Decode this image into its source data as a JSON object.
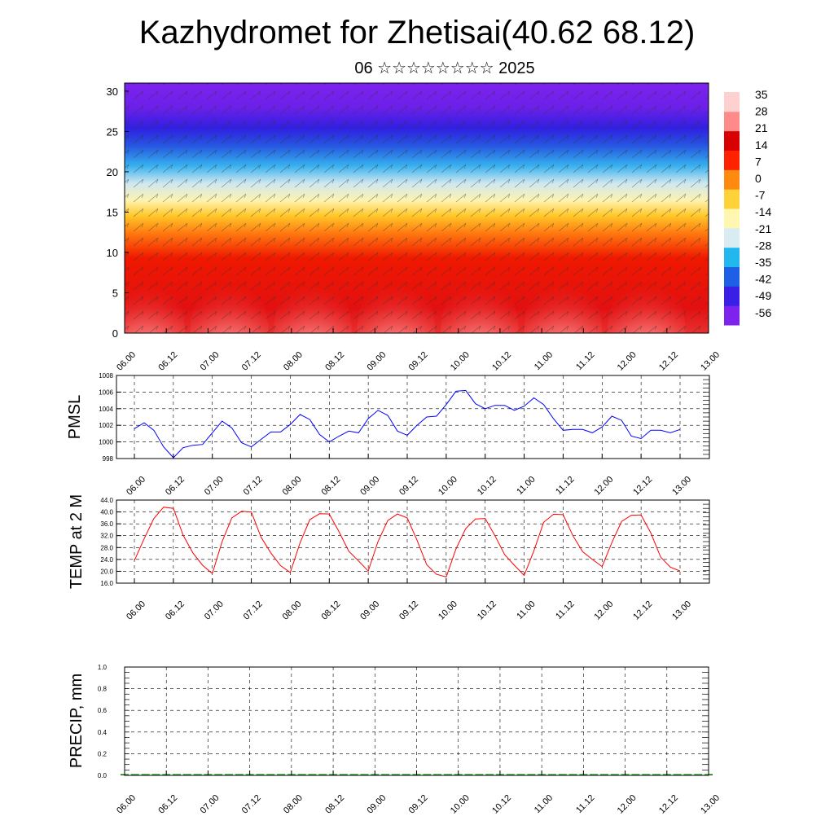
{
  "title": "Kazhydromet for Zhetisai(40.62 68.12)",
  "subtitle": "06 ☆☆☆☆☆☆☆☆ 2025",
  "x_tick_labels": [
    "06.00",
    "06.12",
    "07.00",
    "07.12",
    "08.00",
    "08.12",
    "09.00",
    "09.12",
    "10.00",
    "10.12",
    "11.00",
    "11.12",
    "12.00",
    "12.12",
    "13.00"
  ],
  "colors": {
    "pmsl_line": "#0000ff",
    "temp_line": "#ff0000",
    "precip_baseline": "#006400",
    "colorbar": [
      "#7e22ee",
      "#3a1fe6",
      "#1e5fe6",
      "#22b8ef",
      "#d8ecf2",
      "#fff6b0",
      "#ffd23a",
      "#ff8a10",
      "#ff2200",
      "#d80000",
      "#ff8a8a",
      "#ffd0d0"
    ]
  },
  "chart_data": [
    {
      "type": "heatmap",
      "description_shown": "filled contour of temperature by height with wind barbs",
      "ylim": [
        0,
        30
      ],
      "y_ticks": [
        "0",
        "5",
        "10",
        "15",
        "20",
        "25",
        "30"
      ],
      "colorbar_ticks": [
        "35",
        "28",
        "21",
        "14",
        "7",
        "0",
        "-7",
        "-14",
        "-21",
        "-28",
        "-35",
        "-42",
        "-49",
        "-56"
      ],
      "colorbar_range": [
        -60,
        38
      ]
    },
    {
      "type": "line",
      "ylabel": "PMSL",
      "ylim": [
        998,
        1008
      ],
      "y_ticks": [
        "998",
        "1000",
        "1002",
        "1004",
        "1006",
        "1008"
      ],
      "x_hours": [
        0,
        3,
        6,
        9,
        12,
        15,
        18,
        21,
        24,
        27,
        30,
        33,
        36,
        39,
        42,
        45,
        48,
        51,
        54,
        57,
        60,
        63,
        66,
        69,
        72,
        75,
        78,
        81,
        84,
        87,
        90,
        93,
        96,
        99,
        102,
        105,
        108,
        111,
        114,
        117,
        120,
        123,
        126,
        129,
        132,
        135,
        138,
        141,
        144,
        147,
        150,
        153,
        156,
        159,
        162,
        165,
        168
      ],
      "values": [
        1001.6,
        1002.3,
        1001.4,
        999.4,
        998.1,
        999.3,
        999.6,
        999.7,
        1001.1,
        1002.5,
        1001.7,
        999.9,
        999.4,
        1000.3,
        1001.2,
        1001.2,
        1002.1,
        1003.3,
        1002.7,
        1000.9,
        1000.0,
        1000.7,
        1001.3,
        1001.1,
        1002.8,
        1003.8,
        1003.2,
        1001.3,
        1000.8,
        1002.0,
        1003.0,
        1003.1,
        1004.5,
        1006.1,
        1006.2,
        1004.6,
        1004.0,
        1004.4,
        1004.4,
        1003.8,
        1004.3,
        1005.3,
        1004.5,
        1002.8,
        1001.4,
        1001.5,
        1001.5,
        1001.1,
        1001.8,
        1003.1,
        1002.6,
        1000.7,
        1000.4,
        1001.4,
        1001.4,
        1001.1,
        1001.5
      ]
    },
    {
      "type": "line",
      "ylabel": "TEMP at 2 M",
      "ylim": [
        16,
        44
      ],
      "y_ticks": [
        "16.0",
        "20.0",
        "24.0",
        "28.0",
        "32.0",
        "36.0",
        "40.0",
        "44.0"
      ],
      "x_hours": [
        0,
        3,
        6,
        9,
        12,
        15,
        18,
        21,
        24,
        27,
        30,
        33,
        36,
        39,
        42,
        45,
        48,
        51,
        54,
        57,
        60,
        63,
        66,
        69,
        72,
        75,
        78,
        81,
        84,
        87,
        90,
        93,
        96,
        99,
        102,
        105,
        108,
        111,
        114,
        117,
        120,
        123,
        126,
        129,
        132,
        135,
        138,
        141,
        144,
        147,
        150,
        153,
        156,
        159,
        162,
        165,
        168
      ],
      "values": [
        23.6,
        31.0,
        37.8,
        41.6,
        41.2,
        32.2,
        26.2,
        22.0,
        19.2,
        30.0,
        38.0,
        40.2,
        40.0,
        31.5,
        26.2,
        21.9,
        19.6,
        29.6,
        37.4,
        39.4,
        39.3,
        33.3,
        26.8,
        23.5,
        20.1,
        30.0,
        37.1,
        39.3,
        38.0,
        30.5,
        22.2,
        19.0,
        18.1,
        27.5,
        34.4,
        37.6,
        37.8,
        32.0,
        25.6,
        22.0,
        18.6,
        26.9,
        36.5,
        39.2,
        39.1,
        32.0,
        26.6,
        24.0,
        21.6,
        29.7,
        36.8,
        38.9,
        39.0,
        32.9,
        24.8,
        21.4,
        20.1
      ]
    },
    {
      "type": "bar",
      "ylabel": "PRECIP, mm",
      "ylim": [
        0,
        1
      ],
      "y_ticks": [
        "0.0",
        "0.2",
        "0.4",
        "0.6",
        "0.8",
        "1.0"
      ],
      "values": [
        0,
        0,
        0,
        0,
        0,
        0,
        0,
        0,
        0,
        0,
        0,
        0,
        0,
        0,
        0,
        0,
        0,
        0,
        0,
        0,
        0,
        0,
        0,
        0,
        0,
        0,
        0,
        0,
        0,
        0,
        0,
        0,
        0,
        0,
        0,
        0,
        0,
        0,
        0,
        0,
        0,
        0,
        0,
        0,
        0,
        0,
        0,
        0,
        0,
        0,
        0,
        0,
        0,
        0,
        0,
        0,
        0
      ]
    }
  ]
}
